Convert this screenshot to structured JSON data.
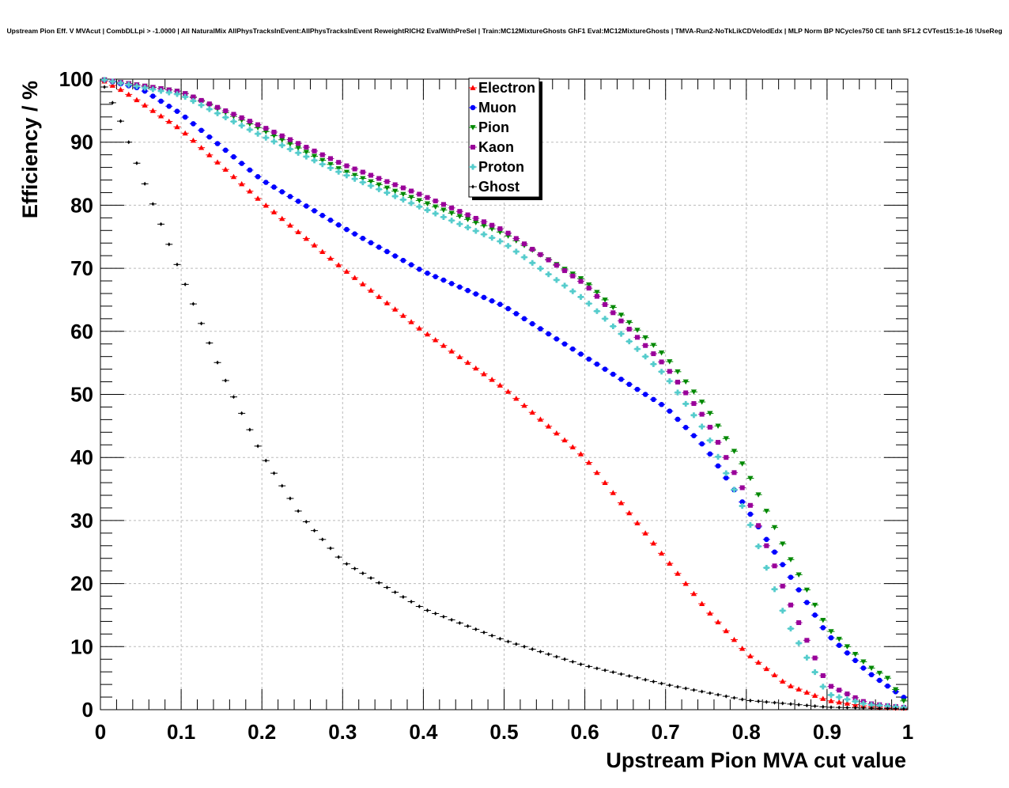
{
  "chart_data": {
    "type": "scatter",
    "title": "Upstream Pion Eff. V MVAcut | CombDLLpi > -1.0000 | All NaturalMix AllPhysTracksInEvent:AllPhysTracksInEvent ReweightRICH2 EvalWithPreSel | Train:MC12MixtureGhosts GhF1 Eval:MC12MixtureGhosts | TMVA-Run2-NoTkLikCDVelodEdx | MLP Norm BP NCycles750 CE tanh SF1.2 CVTest15:1e-16 !UseReg",
    "xlabel": "Upstream Pion MVA cut value",
    "ylabel": "Efficiency / %",
    "xlim": [
      0,
      1
    ],
    "ylim": [
      0,
      100
    ],
    "xticks": [
      "0",
      "0.1",
      "0.2",
      "0.3",
      "0.4",
      "0.5",
      "0.6",
      "0.7",
      "0.8",
      "0.9",
      "1"
    ],
    "yticks": [
      "0",
      "10",
      "20",
      "30",
      "40",
      "50",
      "60",
      "70",
      "80",
      "90",
      "100"
    ],
    "grid": true,
    "legend_position": "top-center",
    "series": [
      {
        "name": "Electron",
        "color": "#ff0000",
        "marker": "triangle-up",
        "knots": [
          [
            0,
            100
          ],
          [
            0.03,
            98
          ],
          [
            0.1,
            92
          ],
          [
            0.2,
            80.5
          ],
          [
            0.3,
            70
          ],
          [
            0.4,
            60
          ],
          [
            0.5,
            51
          ],
          [
            0.6,
            40
          ],
          [
            0.7,
            24
          ],
          [
            0.75,
            16
          ],
          [
            0.8,
            9
          ],
          [
            0.85,
            4
          ],
          [
            0.9,
            1.5
          ],
          [
            0.95,
            0.5
          ],
          [
            1,
            0.2
          ]
        ]
      },
      {
        "name": "Muon",
        "color": "#0000ff",
        "marker": "circle",
        "knots": [
          [
            0,
            100
          ],
          [
            0.05,
            98.5
          ],
          [
            0.1,
            94.5
          ],
          [
            0.2,
            84
          ],
          [
            0.3,
            76.5
          ],
          [
            0.4,
            69.5
          ],
          [
            0.5,
            64
          ],
          [
            0.6,
            56
          ],
          [
            0.7,
            48
          ],
          [
            0.75,
            41.5
          ],
          [
            0.8,
            32
          ],
          [
            0.85,
            22
          ],
          [
            0.9,
            12
          ],
          [
            0.95,
            6
          ],
          [
            1,
            1.5
          ]
        ]
      },
      {
        "name": "Pion",
        "color": "#008800",
        "marker": "triangle-down",
        "knots": [
          [
            0,
            100
          ],
          [
            0.1,
            98
          ],
          [
            0.2,
            92
          ],
          [
            0.3,
            85.5
          ],
          [
            0.4,
            80.5
          ],
          [
            0.5,
            75.5
          ],
          [
            0.6,
            68
          ],
          [
            0.7,
            56
          ],
          [
            0.75,
            48
          ],
          [
            0.8,
            38
          ],
          [
            0.85,
            25
          ],
          [
            0.9,
            13
          ],
          [
            0.95,
            7
          ],
          [
            0.975,
            5
          ],
          [
            1,
            0.5
          ]
        ]
      },
      {
        "name": "Kaon",
        "color": "#990099",
        "marker": "square",
        "knots": [
          [
            0,
            100
          ],
          [
            0.1,
            98
          ],
          [
            0.2,
            92.5
          ],
          [
            0.3,
            86.5
          ],
          [
            0.4,
            81.5
          ],
          [
            0.5,
            76
          ],
          [
            0.6,
            67.5
          ],
          [
            0.7,
            54.5
          ],
          [
            0.75,
            46
          ],
          [
            0.8,
            34
          ],
          [
            0.85,
            18
          ],
          [
            0.9,
            4
          ],
          [
            0.95,
            1
          ],
          [
            1,
            0.3
          ]
        ]
      },
      {
        "name": "Proton",
        "color": "#55cccc",
        "marker": "cross",
        "knots": [
          [
            0,
            100
          ],
          [
            0.1,
            97.5
          ],
          [
            0.2,
            91
          ],
          [
            0.3,
            85
          ],
          [
            0.4,
            79.5
          ],
          [
            0.5,
            74
          ],
          [
            0.6,
            65
          ],
          [
            0.7,
            53
          ],
          [
            0.75,
            44
          ],
          [
            0.8,
            31
          ],
          [
            0.85,
            14
          ],
          [
            0.9,
            2.5
          ],
          [
            0.95,
            0.8
          ],
          [
            1,
            0.3
          ]
        ]
      },
      {
        "name": "Ghost",
        "color": "#000000",
        "marker": "diamond",
        "knots": [
          [
            0,
            100
          ],
          [
            0.02,
            95
          ],
          [
            0.05,
            85
          ],
          [
            0.1,
            69
          ],
          [
            0.15,
            53.5
          ],
          [
            0.2,
            40.5
          ],
          [
            0.25,
            30.5
          ],
          [
            0.3,
            23.5
          ],
          [
            0.4,
            16
          ],
          [
            0.5,
            11
          ],
          [
            0.6,
            7
          ],
          [
            0.7,
            4
          ],
          [
            0.8,
            1.5
          ],
          [
            0.9,
            0.4
          ],
          [
            1,
            0.1
          ]
        ]
      }
    ]
  }
}
